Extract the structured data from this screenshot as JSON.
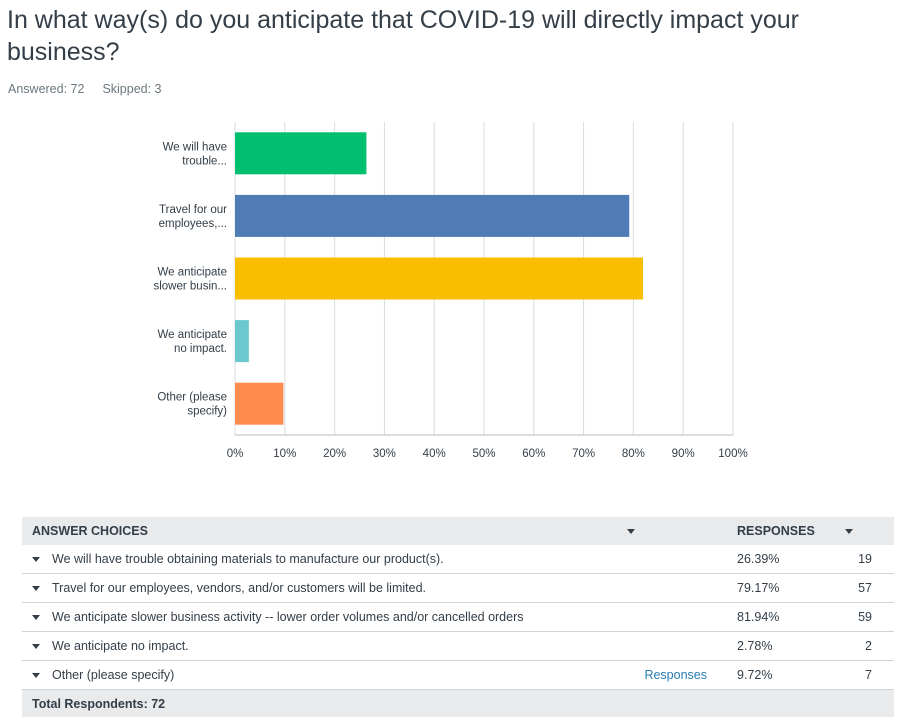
{
  "question": {
    "title": "In what way(s) do you anticipate that COVID-19 will directly impact your business?",
    "answered_label": "Answered: 72",
    "skipped_label": "Skipped: 3"
  },
  "colors": {
    "bars": [
      "#00bf6f",
      "#507cb6",
      "#f9be00",
      "#6bc8cd",
      "#ff8b4f"
    ],
    "grid": "#d9dcdf",
    "header_bg": "#e8eaec",
    "link": "#2a7db1"
  },
  "chart_data": {
    "type": "bar",
    "orientation": "horizontal",
    "categories": [
      [
        "We will have",
        "trouble..."
      ],
      [
        "Travel for our",
        "employees,..."
      ],
      [
        "We anticipate",
        "slower busin..."
      ],
      [
        "We anticipate",
        "no impact."
      ],
      [
        "Other (please",
        "specify)"
      ]
    ],
    "values": [
      26.39,
      79.17,
      81.94,
      2.78,
      9.72
    ],
    "xlim": [
      0,
      100
    ],
    "xticks": [
      "0%",
      "10%",
      "20%",
      "30%",
      "40%",
      "50%",
      "60%",
      "70%",
      "80%",
      "90%",
      "100%"
    ],
    "grid": true
  },
  "table": {
    "header_choices": "ANSWER CHOICES",
    "header_responses": "RESPONSES",
    "rows": [
      {
        "choice": "We will have trouble obtaining materials to manufacture our product(s).",
        "link": "",
        "percent": "26.39%",
        "count": "19"
      },
      {
        "choice": "Travel for our employees, vendors, and/or customers will be limited.",
        "link": "",
        "percent": "79.17%",
        "count": "57"
      },
      {
        "choice": "We anticipate slower business activity -- lower order volumes and/or cancelled orders",
        "link": "",
        "percent": "81.94%",
        "count": "59"
      },
      {
        "choice": "We anticipate no impact.",
        "link": "",
        "percent": "2.78%",
        "count": "2"
      },
      {
        "choice": "Other (please specify)",
        "link": "Responses",
        "percent": "9.72%",
        "count": "7"
      }
    ],
    "total_label": "Total Respondents: 72"
  }
}
